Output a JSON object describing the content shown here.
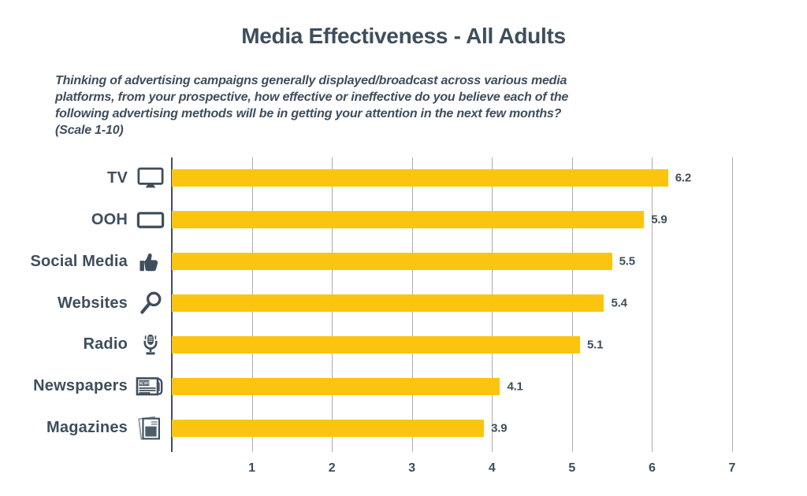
{
  "chart_data": {
    "type": "bar",
    "orientation": "horizontal",
    "title": "Media Effectiveness - All Adults",
    "subtitle": "Thinking of advertising campaigns generally displayed/broadcast across various media\nplatforms, from your prospective, how effective or ineffective do you believe each of the\nfollowing advertising methods will be in getting your attention in the next few months?\n(Scale 1-10)",
    "categories": [
      "TV",
      "OOH",
      "Social Media",
      "Websites",
      "Radio",
      "Newspapers",
      "Magazines"
    ],
    "values": [
      6.2,
      5.9,
      5.5,
      5.4,
      5.1,
      4.1,
      3.9
    ],
    "icons": [
      "tv-icon",
      "billboard-icon",
      "thumbs-up-icon",
      "magnifier-icon",
      "microphone-icon",
      "newspaper-icon",
      "magazine-icon"
    ],
    "newspaper_icon_text": "NEWS",
    "xlabel": "",
    "ylabel": "",
    "xlim": [
      0,
      7
    ],
    "xticks": [
      "1",
      "2",
      "3",
      "4",
      "5",
      "6",
      "7"
    ],
    "grid": true,
    "legend": false,
    "colors": {
      "bar": "#FBC40F",
      "text": "#3E4E5C",
      "gridline": "#ABAEB0",
      "axis": "#3E4E5C",
      "icon_gray": "#8A949C",
      "background": "#FFFFFF"
    }
  }
}
